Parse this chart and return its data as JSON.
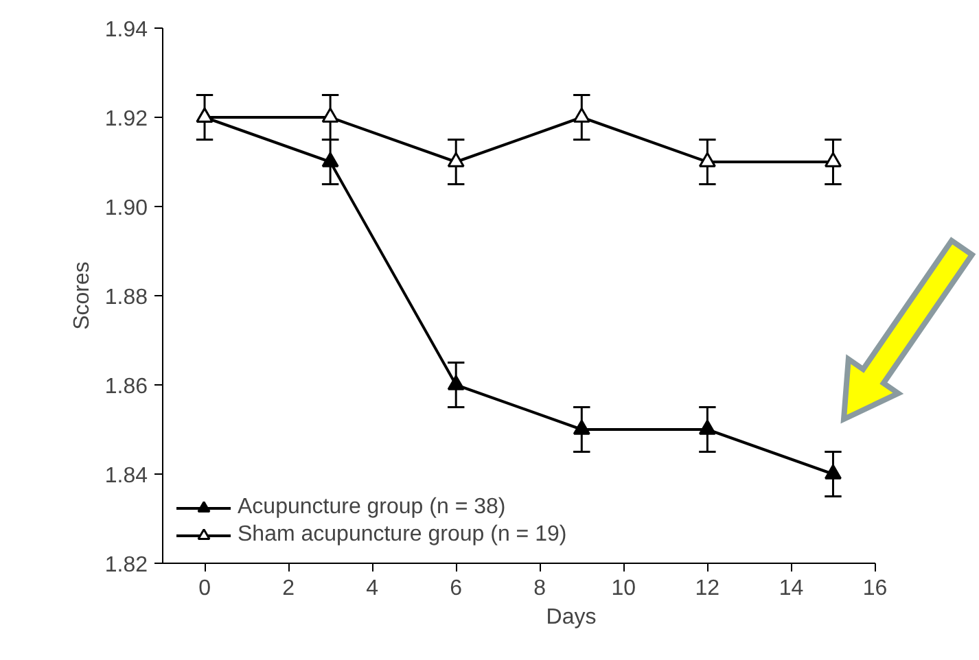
{
  "chart_data": {
    "type": "line",
    "xlabel": "Days",
    "ylabel": "Scores",
    "x": [
      0,
      3,
      6,
      9,
      12,
      15
    ],
    "series": [
      {
        "name": "Acupuncture group (n = 38)",
        "color": "#000000",
        "values": [
          1.92,
          1.91,
          1.86,
          1.85,
          1.85,
          1.84
        ],
        "errors": [
          0.005,
          0.005,
          0.005,
          0.005,
          0.005,
          0.005
        ]
      },
      {
        "name": "Sham acupuncture group (n = 19)",
        "color": "#000000",
        "values": [
          1.92,
          1.92,
          1.91,
          1.92,
          1.91,
          1.91
        ],
        "errors": [
          0.005,
          0.005,
          0.005,
          0.005,
          0.005,
          0.005
        ]
      }
    ],
    "xlim": [
      -1,
      16
    ],
    "xticks": [
      0,
      2,
      4,
      6,
      8,
      10,
      12,
      14,
      16
    ],
    "ylim": [
      1.82,
      1.94
    ],
    "yticks": [
      1.82,
      1.84,
      1.86,
      1.88,
      {
        "value": 1.9,
        "label": "1.90"
      },
      1.92,
      1.94
    ],
    "grid": false,
    "legend": "bottom left",
    "marker": "triangle",
    "line_style": "solid"
  }
}
